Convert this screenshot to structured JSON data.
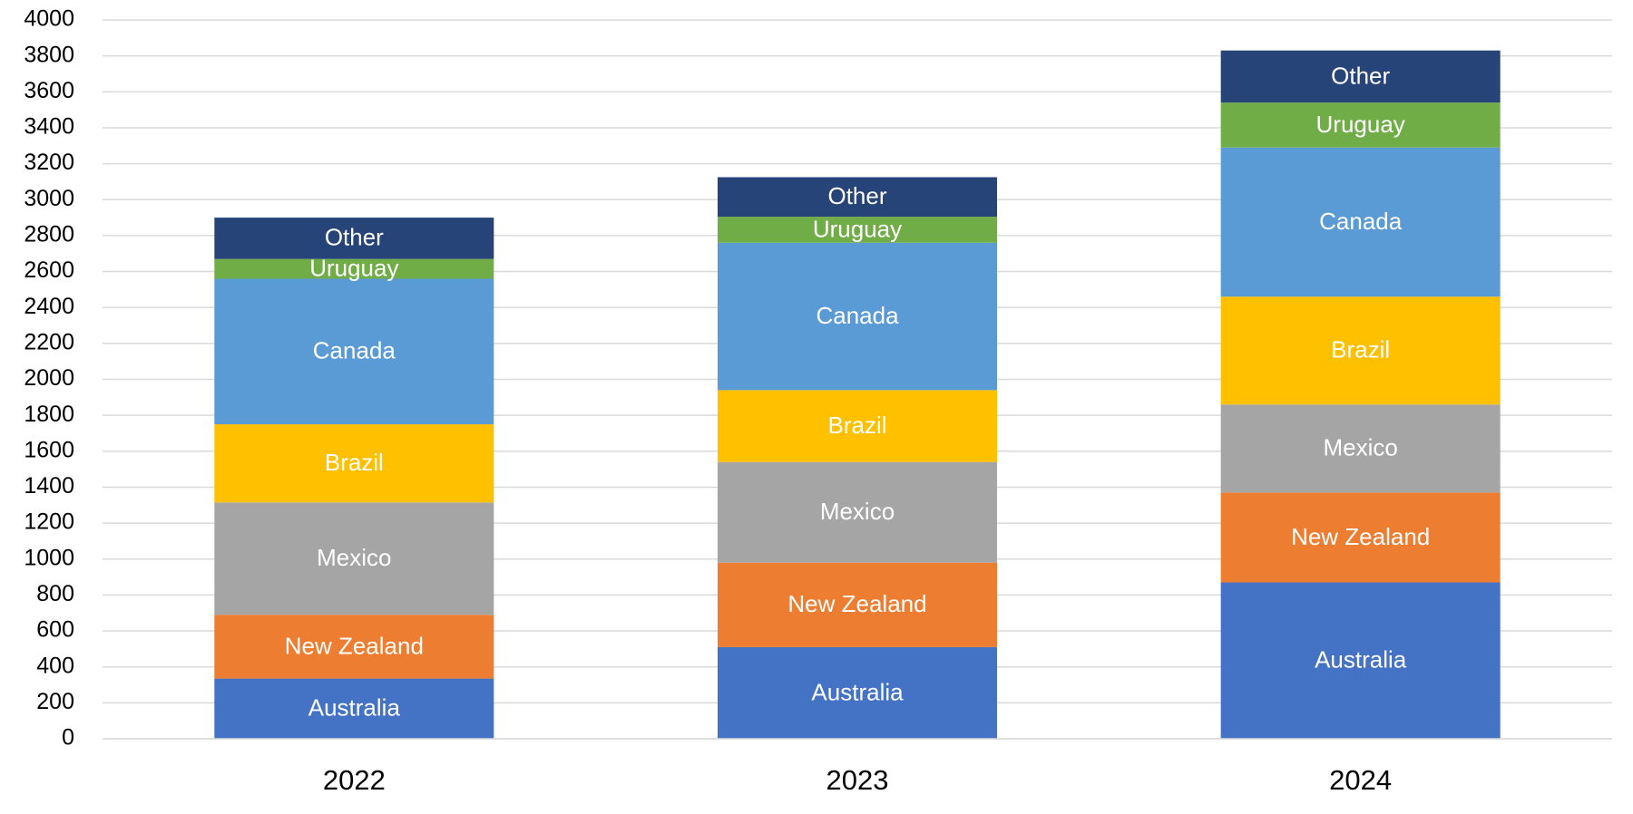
{
  "chart_data": {
    "type": "stacked-bar",
    "categories": [
      "2022",
      "2023",
      "2024"
    ],
    "series": [
      {
        "name": "Australia",
        "color": "#4472c4",
        "values": [
          335,
          510,
          870
        ]
      },
      {
        "name": "New Zealand",
        "color": "#ed7d31",
        "values": [
          355,
          470,
          500
        ]
      },
      {
        "name": "Mexico",
        "color": "#a5a5a5",
        "values": [
          625,
          560,
          490
        ]
      },
      {
        "name": "Brazil",
        "color": "#ffc000",
        "values": [
          435,
          400,
          600
        ]
      },
      {
        "name": "Canada",
        "color": "#5b9bd5",
        "values": [
          810,
          820,
          830
        ]
      },
      {
        "name": "Uruguay",
        "color": "#70ad47",
        "values": [
          110,
          145,
          250
        ]
      },
      {
        "name": "Other",
        "color": "#264478",
        "values": [
          230,
          220,
          290
        ]
      }
    ],
    "ylim": [
      0,
      4000
    ],
    "yticks": [
      0,
      200,
      400,
      600,
      800,
      1000,
      1200,
      1400,
      1600,
      1800,
      2000,
      2200,
      2400,
      2600,
      2800,
      3000,
      3200,
      3400,
      3600,
      3800,
      4000
    ],
    "grid": true
  }
}
